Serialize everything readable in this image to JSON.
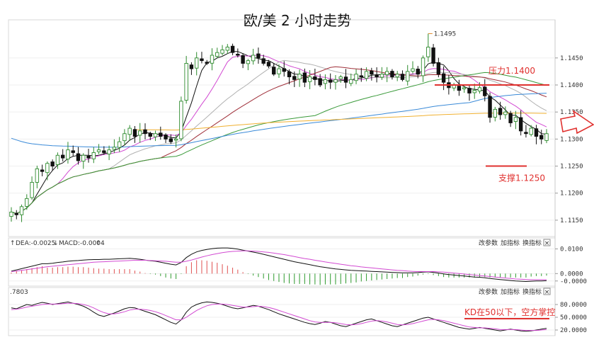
{
  "title": "欧/美 2 小时走势",
  "colors": {
    "up": "#2e8b2e",
    "down": "#111111",
    "ma_magenta": "#d24ad2",
    "ma_darkred": "#a0303a",
    "ma_green": "#3a9a3a",
    "ma_blue": "#3a8ad8",
    "ma_orange": "#f0b030",
    "ma_gray": "#b0b0b0",
    "annotation": "#e0312f"
  },
  "chart_data": [
    {
      "type": "candlestick",
      "panel": "price",
      "y_ticks": [
        "1.1450",
        "1.1400",
        "1.1350",
        "1.1300",
        "1.1250",
        "1.1200",
        "1.1150"
      ],
      "ylim": [
        1.1125,
        1.151
      ],
      "peak_label": "1.1495",
      "peak_value": 1.1495,
      "closes": [
        1.1165,
        1.116,
        1.1175,
        1.119,
        1.122,
        1.1245,
        1.124,
        1.1255,
        1.125,
        1.127,
        1.1265,
        1.128,
        1.1275,
        1.126,
        1.127,
        1.1265,
        1.1275,
        1.128,
        1.1275,
        1.128,
        1.1285,
        1.1295,
        1.131,
        1.132,
        1.1305,
        1.1315,
        1.131,
        1.1305,
        1.131,
        1.1305,
        1.13,
        1.1295,
        1.13,
        1.137,
        1.144,
        1.143,
        1.145,
        1.1445,
        1.144,
        1.1455,
        1.146,
        1.1465,
        1.147,
        1.146,
        1.1455,
        1.144,
        1.1445,
        1.1455,
        1.145,
        1.144,
        1.1435,
        1.142,
        1.143,
        1.1425,
        1.1415,
        1.141,
        1.142,
        1.1405,
        1.1415,
        1.141,
        1.14,
        1.141,
        1.1405,
        1.141,
        1.1415,
        1.1405,
        1.141,
        1.142,
        1.1415,
        1.1425,
        1.142,
        1.1415,
        1.142,
        1.1425,
        1.1415,
        1.142,
        1.141,
        1.1425,
        1.143,
        1.142,
        1.145,
        1.147,
        1.144,
        1.142,
        1.1405,
        1.1395,
        1.14,
        1.139,
        1.1395,
        1.1385,
        1.139,
        1.1395,
        1.138,
        1.134,
        1.1355,
        1.1345,
        1.135,
        1.133,
        1.134,
        1.1315,
        1.131,
        1.132,
        1.1305,
        1.13,
        1.131
      ],
      "resistance": {
        "label": "压力1.1400",
        "value": 1.14
      },
      "support": {
        "label": "支撑1.1250",
        "value": 1.125
      }
    },
    {
      "type": "line",
      "panel": "macd",
      "header_items": [
        "DEA:-0.0025",
        "MACD:-0.0004"
      ],
      "y_ticks": [
        "0.0100",
        "0.0000",
        "-0.0000"
      ],
      "ylim": [
        -0.0045,
        0.011
      ],
      "dif": [
        0.001,
        0.0015,
        0.002,
        0.0025,
        0.003,
        0.0035,
        0.004,
        0.004,
        0.0042,
        0.0045,
        0.0047,
        0.005,
        0.0052,
        0.0053,
        0.0055,
        0.0056,
        0.0057,
        0.0057,
        0.0058,
        0.0058,
        0.0059,
        0.006,
        0.0061,
        0.0062,
        0.006,
        0.0058,
        0.0055,
        0.0052,
        0.005,
        0.0046,
        0.0042,
        0.0038,
        0.0035,
        0.0045,
        0.0065,
        0.0078,
        0.0088,
        0.0094,
        0.0098,
        0.0101,
        0.0103,
        0.0104,
        0.0104,
        0.0102,
        0.0099,
        0.0095,
        0.0091,
        0.0087,
        0.0083,
        0.0078,
        0.0073,
        0.0068,
        0.0063,
        0.0058,
        0.0053,
        0.0048,
        0.0044,
        0.004,
        0.0036,
        0.0032,
        0.0028,
        0.0025,
        0.0022,
        0.0019,
        0.0017,
        0.0015,
        0.0013,
        0.0012,
        0.0011,
        0.001,
        0.0009,
        0.0008,
        0.0007,
        0.0006,
        0.0005,
        0.0004,
        0.0003,
        0.0003,
        0.0003,
        0.0004,
        0.0006,
        0.0007,
        0.0005,
        0.0002,
        -0.0001,
        -0.0004,
        -0.0006,
        -0.0008,
        -0.001,
        -0.0012,
        -0.0014,
        -0.0015,
        -0.0017,
        -0.002,
        -0.0022,
        -0.0024,
        -0.0026,
        -0.0028,
        -0.003,
        -0.0031,
        -0.0032,
        -0.0031,
        -0.003,
        -0.003,
        -0.0029
      ],
      "dea": [
        0.0008,
        0.001,
        0.0013,
        0.0016,
        0.0019,
        0.0022,
        0.0025,
        0.0028,
        0.003,
        0.0032,
        0.0034,
        0.0036,
        0.0038,
        0.004,
        0.0042,
        0.0044,
        0.0046,
        0.0047,
        0.0048,
        0.0049,
        0.005,
        0.0051,
        0.0052,
        0.0053,
        0.0054,
        0.0054,
        0.0054,
        0.0053,
        0.0052,
        0.0051,
        0.005,
        0.0048,
        0.0046,
        0.0046,
        0.005,
        0.0055,
        0.0061,
        0.0067,
        0.0072,
        0.0077,
        0.0081,
        0.0085,
        0.0088,
        0.009,
        0.0091,
        0.0092,
        0.0092,
        0.0091,
        0.009,
        0.0088,
        0.0086,
        0.0083,
        0.008,
        0.0077,
        0.0073,
        0.0069,
        0.0065,
        0.0061,
        0.0058,
        0.0054,
        0.0051,
        0.0047,
        0.0044,
        0.0041,
        0.0038,
        0.0035,
        0.0032,
        0.003,
        0.0027,
        0.0025,
        0.0023,
        0.0021,
        0.0019,
        0.0017,
        0.0015,
        0.0013,
        0.0012,
        0.001,
        0.0009,
        0.0008,
        0.0008,
        0.0008,
        0.0008,
        0.0007,
        0.0006,
        0.0004,
        0.0002,
        0,
        -0.0002,
        -0.0004,
        -0.0006,
        -0.0008,
        -0.001,
        -0.0012,
        -0.0014,
        -0.0016,
        -0.0018,
        -0.002,
        -0.0022,
        -0.0023,
        -0.0024,
        -0.0025,
        -0.0025,
        -0.0025,
        -0.0025
      ]
    },
    {
      "type": "line",
      "panel": "kd",
      "header_value": ".7803",
      "y_ticks": [
        "80.0000",
        "50.0000",
        "20.0000"
      ],
      "ylim": [
        10,
        100
      ],
      "k": [
        72,
        70,
        75,
        80,
        78,
        82,
        85,
        83,
        80,
        82,
        84,
        86,
        83,
        80,
        76,
        70,
        62,
        55,
        52,
        56,
        60,
        65,
        70,
        73,
        72,
        68,
        64,
        60,
        56,
        50,
        44,
        38,
        34,
        44,
        62,
        74,
        80,
        84,
        86,
        85,
        83,
        80,
        76,
        72,
        70,
        72,
        75,
        78,
        76,
        72,
        68,
        63,
        58,
        54,
        50,
        46,
        42,
        38,
        35,
        33,
        36,
        40,
        38,
        34,
        30,
        28,
        32,
        36,
        40,
        44,
        46,
        42,
        38,
        34,
        30,
        28,
        32,
        36,
        40,
        44,
        48,
        50,
        46,
        42,
        38,
        34,
        30,
        26,
        24,
        22,
        24,
        26,
        24,
        22,
        20,
        18,
        20,
        22,
        20,
        18,
        17,
        18,
        20,
        22,
        24
      ],
      "d": [
        68,
        69,
        71,
        74,
        76,
        78,
        80,
        81,
        81,
        81,
        82,
        83,
        83,
        82,
        80,
        77,
        72,
        66,
        61,
        58,
        58,
        60,
        63,
        67,
        69,
        69,
        68,
        66,
        63,
        59,
        54,
        49,
        44,
        44,
        50,
        58,
        66,
        72,
        77,
        80,
        81,
        81,
        80,
        78,
        76,
        74,
        74,
        75,
        76,
        75,
        73,
        70,
        66,
        62,
        58,
        54,
        50,
        46,
        42,
        39,
        38,
        38,
        38,
        37,
        35,
        33,
        32,
        33,
        35,
        38,
        41,
        42,
        41,
        39,
        36,
        33,
        32,
        33,
        35,
        38,
        41,
        44,
        45,
        44,
        42,
        39,
        36,
        33,
        30,
        27,
        26,
        25,
        25,
        24,
        23,
        21,
        21,
        21,
        21,
        20,
        19,
        19,
        19,
        20,
        21
      ],
      "threshold_label": "KD在50以下，空方掌控",
      "threshold_value": 50
    }
  ],
  "toolbar": {
    "change_params": "改参数",
    "add_indicator": "加指标",
    "switch_indicator": "换指标",
    "close": "×"
  }
}
